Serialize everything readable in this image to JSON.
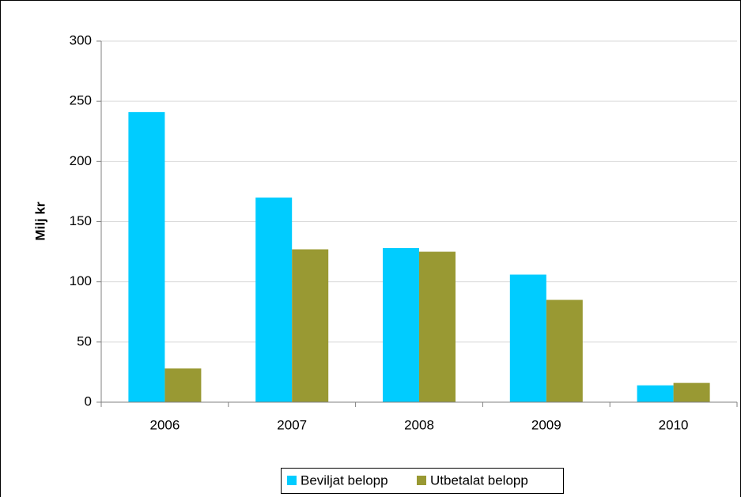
{
  "chart_data": {
    "type": "bar",
    "y_label": "Milj kr",
    "categories": [
      "2006",
      "2007",
      "2008",
      "2009",
      "2010"
    ],
    "series": [
      {
        "name": "Beviljat belopp",
        "color": "#00ccff",
        "values": [
          241,
          170,
          128,
          106,
          14
        ]
      },
      {
        "name": "Utbetalat belopp",
        "color": "#999933",
        "values": [
          28,
          127,
          125,
          85,
          16
        ]
      }
    ],
    "ylim": [
      0,
      300
    ],
    "yticks": [
      0,
      50,
      100,
      150,
      200,
      250,
      300
    ],
    "grid": true,
    "legend": "bottom"
  }
}
